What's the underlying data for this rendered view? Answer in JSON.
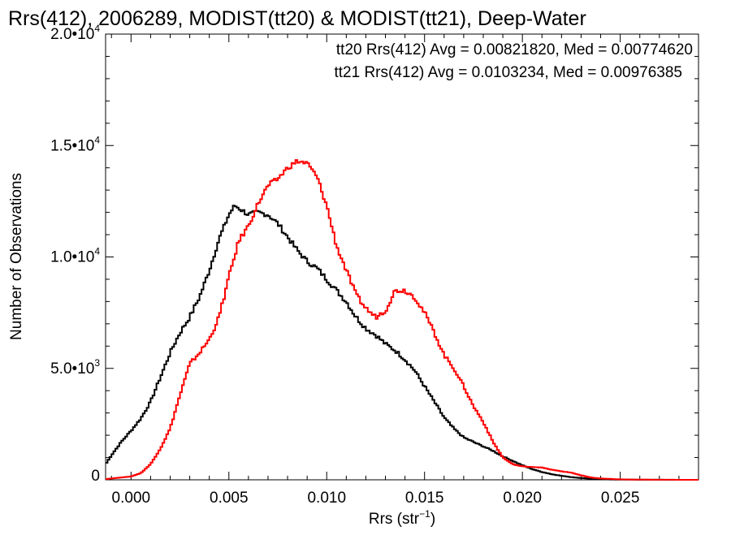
{
  "title": "Rrs(412), 2006289, MODIST(tt20) & MODIST(tt21), Deep-Water",
  "legend": [
    {
      "text": "tt20 Rrs(412) Avg = 0.00821820, Med = 0.00774620",
      "color": "#000000"
    },
    {
      "text": "tt21 Rrs(412) Avg = 0.0103234, Med = 0.00976385",
      "color": "#ff0000"
    }
  ],
  "axes": {
    "xlabel": "Rrs (str",
    "xlabel_sup": "−1",
    "xlabel_end": ")",
    "ylabel": "Number of Observations",
    "xticks": [
      {
        "value": 0.0,
        "label": "0.000"
      },
      {
        "value": 0.005,
        "label": "0.005"
      },
      {
        "value": 0.01,
        "label": "0.010"
      },
      {
        "value": 0.015,
        "label": "0.015"
      },
      {
        "value": 0.02,
        "label": "0.020"
      },
      {
        "value": 0.025,
        "label": "0.025"
      }
    ],
    "yticks": [
      {
        "value": 0,
        "mant": "0",
        "exp": ""
      },
      {
        "value": 5000,
        "mant": "5.0•10",
        "exp": "3"
      },
      {
        "value": 10000,
        "mant": "1.0•10",
        "exp": "4"
      },
      {
        "value": 15000,
        "mant": "1.5•10",
        "exp": "4"
      },
      {
        "value": 20000,
        "mant": "2.0•10",
        "exp": "4"
      }
    ]
  },
  "chart_data": {
    "type": "line",
    "step": true,
    "xlim": [
      -0.0013,
      0.029
    ],
    "ylim": [
      0,
      20000
    ],
    "series": [
      {
        "name": "tt20",
        "color": "#000000",
        "x": [
          -0.0013,
          -0.001,
          -0.0005,
          0.0,
          0.0005,
          0.001,
          0.0015,
          0.002,
          0.0025,
          0.003,
          0.0035,
          0.004,
          0.0045,
          0.005,
          0.0053,
          0.0055,
          0.006,
          0.0065,
          0.007,
          0.0075,
          0.008,
          0.0085,
          0.009,
          0.0095,
          0.01,
          0.0105,
          0.011,
          0.0115,
          0.012,
          0.0125,
          0.013,
          0.0135,
          0.014,
          0.0145,
          0.015,
          0.0155,
          0.016,
          0.0165,
          0.017,
          0.0175,
          0.018,
          0.0185,
          0.019,
          0.0195,
          0.02,
          0.0205,
          0.021,
          0.0215,
          0.022,
          0.0225,
          0.023,
          0.0235,
          0.024,
          0.0245,
          0.025,
          0.026,
          0.027,
          0.029
        ],
        "y": [
          700,
          1100,
          1700,
          2200,
          2750,
          3500,
          4600,
          5700,
          6600,
          7300,
          8200,
          9400,
          10800,
          11900,
          12300,
          12200,
          11900,
          12000,
          11900,
          11500,
          10900,
          10300,
          9800,
          9500,
          9000,
          8500,
          8000,
          7300,
          6800,
          6500,
          6100,
          5800,
          5400,
          4900,
          4200,
          3500,
          2800,
          2300,
          1900,
          1700,
          1500,
          1300,
          1050,
          850,
          650,
          480,
          350,
          250,
          180,
          120,
          80,
          50,
          30,
          15,
          10,
          4,
          2,
          0
        ]
      },
      {
        "name": "tt21",
        "color": "#ff0000",
        "x": [
          -0.0013,
          -0.001,
          0.0,
          0.0005,
          0.001,
          0.0015,
          0.002,
          0.0025,
          0.003,
          0.0035,
          0.004,
          0.0045,
          0.005,
          0.0055,
          0.006,
          0.0065,
          0.007,
          0.0075,
          0.008,
          0.0085,
          0.009,
          0.0095,
          0.01,
          0.0105,
          0.011,
          0.0115,
          0.012,
          0.0125,
          0.013,
          0.0135,
          0.014,
          0.0145,
          0.015,
          0.0155,
          0.016,
          0.0165,
          0.017,
          0.0175,
          0.018,
          0.0185,
          0.019,
          0.0195,
          0.02,
          0.0205,
          0.021,
          0.0215,
          0.022,
          0.0225,
          0.023,
          0.0235,
          0.024,
          0.0245,
          0.025,
          0.026,
          0.027,
          0.029
        ],
        "y": [
          30,
          60,
          150,
          300,
          700,
          1400,
          2300,
          3800,
          5200,
          5700,
          6300,
          7300,
          9100,
          10700,
          11400,
          12400,
          13200,
          13500,
          14000,
          14300,
          14200,
          13600,
          12300,
          10500,
          9400,
          8300,
          7700,
          7300,
          7600,
          8500,
          8500,
          8200,
          7500,
          6600,
          5600,
          5000,
          4200,
          3300,
          2600,
          1700,
          1000,
          700,
          600,
          580,
          550,
          450,
          380,
          320,
          200,
          100,
          60,
          40,
          20,
          8,
          3,
          0
        ]
      }
    ]
  }
}
